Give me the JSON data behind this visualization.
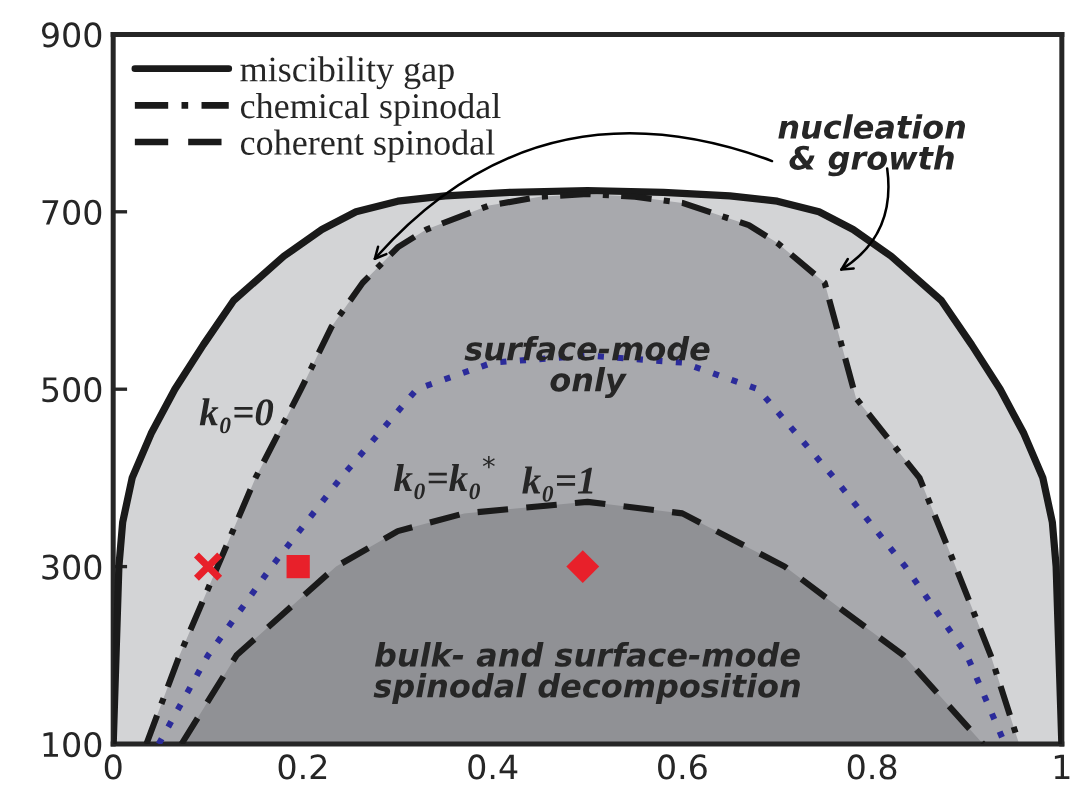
{
  "chart_data": {
    "type": "area",
    "series": [
      {
        "name": "miscibility gap",
        "color": "#d3d4d6",
        "line_style": "solid",
        "x": [
          0.0,
          0.003,
          0.006,
          0.01,
          0.02,
          0.04,
          0.065,
          0.095,
          0.127,
          0.18,
          0.22,
          0.256,
          0.3,
          0.35,
          0.42,
          0.5,
          0.58,
          0.65,
          0.7,
          0.744,
          0.78,
          0.82,
          0.873,
          0.905,
          0.935,
          0.96,
          0.98,
          0.99,
          0.994,
          0.997,
          1.0
        ],
        "values": [
          100,
          200,
          300,
          350,
          400,
          450,
          500,
          550,
          600,
          650,
          680,
          700,
          712,
          718,
          722,
          724,
          722,
          718,
          712,
          700,
          680,
          650,
          600,
          550,
          500,
          450,
          400,
          350,
          300,
          200,
          100
        ]
      },
      {
        "name": "chemical spinodal",
        "color": "#a8a9ad",
        "line_style": "dashdot",
        "x": [
          0.035,
          0.07,
          0.11,
          0.15,
          0.198,
          0.23,
          0.263,
          0.3,
          0.33,
          0.396,
          0.45,
          0.5,
          0.55,
          0.6,
          0.67,
          0.7,
          0.75,
          0.783,
          0.85,
          0.888,
          0.925,
          0.955
        ],
        "values": [
          100,
          200,
          300,
          400,
          500,
          570,
          620,
          660,
          680,
          707,
          717,
          720,
          717,
          710,
          685,
          665,
          620,
          490,
          400,
          300,
          200,
          100
        ]
      },
      {
        "name": "coherent spinodal",
        "color": "#909195",
        "line_style": "dashed",
        "x": [
          0.072,
          0.13,
          0.235,
          0.3,
          0.37,
          0.5,
          0.6,
          0.708,
          0.77,
          0.833,
          0.917
        ],
        "values": [
          100,
          200,
          300,
          340,
          360,
          373,
          360,
          300,
          250,
          200,
          100
        ]
      },
      {
        "type": "line",
        "color": "#2b2b9a",
        "line_style": "dotted",
        "x": [
          0.048,
          0.1,
          0.167,
          0.24,
          0.32,
          0.4,
          0.5,
          0.6,
          0.68,
          0.76,
          0.835,
          0.9,
          0.94
        ],
        "values": [
          100,
          200,
          300,
          400,
          500,
          530,
          538,
          530,
          500,
          400,
          300,
          200,
          100
        ]
      },
      {
        "type": "scatter",
        "color": "#e8202a",
        "marker": "cross",
        "x": [
          0.1
        ],
        "values": [
          300
        ]
      },
      {
        "type": "scatter",
        "color": "#e8202a",
        "marker": "square",
        "x": [
          0.195
        ],
        "values": [
          300
        ]
      },
      {
        "type": "scatter",
        "color": "#e8202a",
        "marker": "diamond",
        "x": [
          0.495
        ],
        "values": [
          300
        ]
      }
    ],
    "xlim": [
      0,
      1
    ],
    "xticks": [
      0,
      0.2,
      0.4,
      0.6,
      0.8,
      1
    ],
    "ylim": [
      100,
      900
    ],
    "yticks": [
      100,
      300,
      500,
      700,
      900
    ],
    "legend": "top left",
    "grid": false,
    "annotations": [
      "k₀=0",
      "k₀=k₀$^{*}$",
      "k₀=1",
      "nucleation\n& growth",
      "surface-mode\nonly",
      "bulk- and surface-mode\nspinodal decomposition"
    ]
  }
}
